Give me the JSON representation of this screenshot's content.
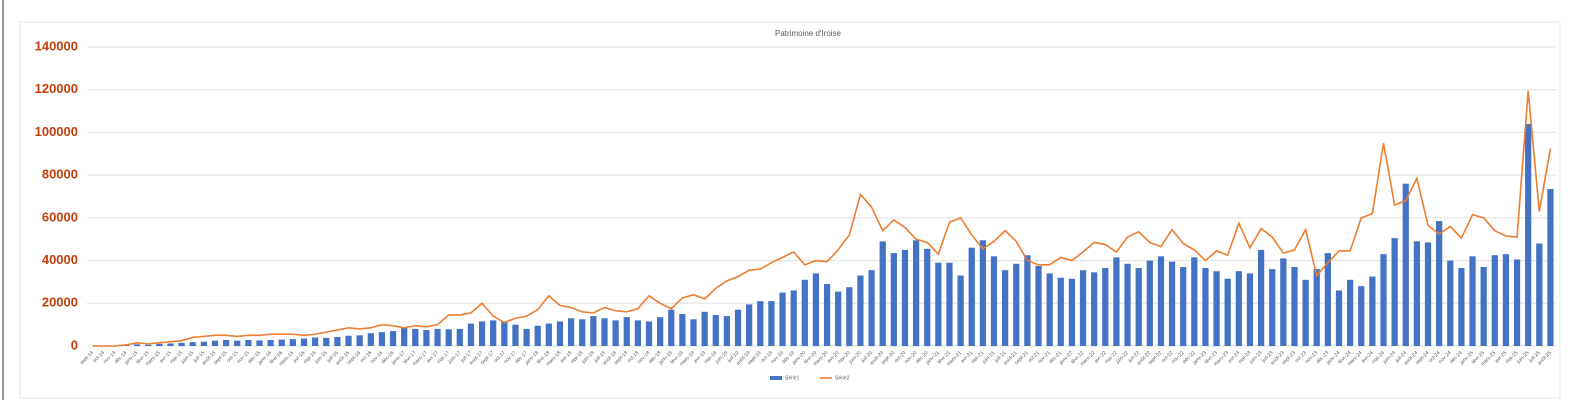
{
  "chart_data": {
    "type": "bar_line",
    "title": "Patrimoine d'Iroise",
    "categories": [
      "sept-14",
      "oct-14",
      "nov-14",
      "déc-14",
      "janv-15",
      "févr-15",
      "mars-15",
      "avr-15",
      "mai-15",
      "juin-15",
      "juil-15",
      "août-15",
      "sept-15",
      "oct-15",
      "nov-15",
      "déc-15",
      "janv-16",
      "févr-16",
      "mars-16",
      "avr-16",
      "mai-16",
      "juin-16",
      "juil-16",
      "août-16",
      "sept-16",
      "oct-16",
      "nov-16",
      "déc-16",
      "janv-17",
      "févr-17",
      "mars-17",
      "avr-17",
      "mai-17",
      "juin-17",
      "juil-17",
      "août-17",
      "sept-17",
      "oct-17",
      "nov-17",
      "déc-17",
      "janv-18",
      "févr-18",
      "mars-18",
      "avr-18",
      "mai-18",
      "juin-18",
      "juil-18",
      "août-18",
      "sept-18",
      "oct-18",
      "nov-18",
      "déc-18",
      "janv-19",
      "févr-19",
      "mars-19",
      "avr-19",
      "mai-19",
      "juin-19",
      "juil-19",
      "août-19",
      "sept-19",
      "oct-19",
      "nov-19",
      "déc-19",
      "janv-20",
      "févr-20",
      "mars-20",
      "avr-20",
      "mai-20",
      "juin-20",
      "juil-20",
      "août-20",
      "sept-20",
      "oct-20",
      "nov-20",
      "déc-20",
      "janv-21",
      "févr-21",
      "mars-21",
      "avr-21",
      "mai-21",
      "juin-21",
      "juil-21",
      "août-21",
      "sept-21",
      "oct-21",
      "nov-21",
      "déc-21",
      "janv-22",
      "févr-22",
      "mars-22",
      "avr-22",
      "mai-22",
      "juin-22",
      "juil-22",
      "août-22",
      "sept-22",
      "oct-22",
      "nov-22",
      "déc-22",
      "janv-23",
      "févr-23",
      "mars-23",
      "avr-23",
      "mai-23",
      "juin-23",
      "juil-23",
      "août-23",
      "sept-23",
      "oct-23",
      "nov-23",
      "déc-23",
      "janv-24",
      "févr-24",
      "mars-24",
      "avr-24",
      "mai-24",
      "juin-24",
      "juil-24",
      "août-24",
      "sept-24",
      "oct-24",
      "nov-24",
      "déc-24",
      "janv-25",
      "févr-25",
      "mars-25",
      "avr-25",
      "mai-25",
      "juin-25",
      "juil-25",
      "août-25"
    ],
    "series": [
      {
        "name": "Série1",
        "type": "bar",
        "color": "#4472c4",
        "values": [
          0,
          0,
          0,
          500,
          800,
          600,
          1000,
          1200,
          1500,
          1800,
          2000,
          2500,
          2800,
          2500,
          2800,
          2600,
          2800,
          3000,
          3200,
          3500,
          4000,
          3800,
          4200,
          4800,
          5000,
          6000,
          6500,
          7000,
          8500,
          8000,
          7500,
          8000,
          7800,
          8000,
          10500,
          11500,
          12000,
          11500,
          10000,
          8000,
          9500,
          10500,
          11500,
          13000,
          12500,
          14000,
          13000,
          12000,
          13500,
          12000,
          11500,
          13500,
          17000,
          15000,
          12500,
          16000,
          14500,
          14000,
          17000,
          19500,
          21000,
          21000,
          25000,
          26000,
          31000,
          34000,
          29000,
          25500,
          27500,
          33000,
          35500,
          49000,
          43500,
          45000,
          49500,
          45500,
          39000,
          39000,
          33000,
          46000,
          49500,
          42000,
          35500,
          38500,
          42500,
          37500,
          34000,
          32000,
          31500,
          35500,
          34500,
          36500,
          41500,
          38500,
          36500,
          40000,
          42000,
          39500,
          37000,
          41500,
          36500,
          35000,
          31500,
          35000,
          34000,
          45000,
          36000,
          41000,
          37000,
          31000,
          36000,
          43500,
          26000,
          31000,
          28000,
          32500,
          43000,
          50500,
          76000,
          49000,
          48500,
          58500,
          40000,
          36500,
          42000,
          37000,
          42500,
          43000,
          40500,
          104000,
          48000,
          73500
        ]
      },
      {
        "name": "Série2",
        "type": "line",
        "color": "#ed7d31",
        "values": [
          0,
          0,
          0,
          500,
          1500,
          1000,
          1500,
          2000,
          2500,
          4000,
          4500,
          5000,
          5000,
          4500,
          5000,
          5000,
          5500,
          5500,
          5500,
          5000,
          5500,
          6500,
          7500,
          8500,
          8000,
          8500,
          10000,
          9500,
          8500,
          9500,
          9000,
          10000,
          14500,
          14500,
          15500,
          20000,
          14000,
          11000,
          13000,
          14000,
          17000,
          23500,
          19000,
          18000,
          16000,
          15500,
          18000,
          16500,
          16000,
          17500,
          23500,
          20000,
          17500,
          22500,
          24000,
          22000,
          27000,
          30500,
          32500,
          35500,
          36000,
          39000,
          41500,
          44000,
          38000,
          40000,
          39500,
          45000,
          52000,
          71000,
          65000,
          54000,
          59000,
          55500,
          50000,
          48500,
          43000,
          58000,
          60000,
          52000,
          45500,
          49000,
          54000,
          49000,
          40000,
          38000,
          38000,
          41500,
          40000,
          44000,
          48500,
          47500,
          44000,
          51000,
          53500,
          48500,
          46500,
          54500,
          48000,
          45000,
          40000,
          44500,
          42500,
          57500,
          46000,
          55000,
          51000,
          43500,
          45000,
          54500,
          33000,
          39000,
          44500,
          44500,
          60000,
          62000,
          95000,
          66000,
          68000,
          78500,
          56500,
          52500,
          56000,
          50500,
          61500,
          60000,
          54000,
          51500,
          51000,
          119500,
          63000,
          92500
        ]
      }
    ],
    "ylim": [
      0,
      140000
    ],
    "yticks": [
      0,
      20000,
      40000,
      60000,
      80000,
      100000,
      120000,
      140000
    ],
    "grid": true,
    "legend": "bottom"
  }
}
